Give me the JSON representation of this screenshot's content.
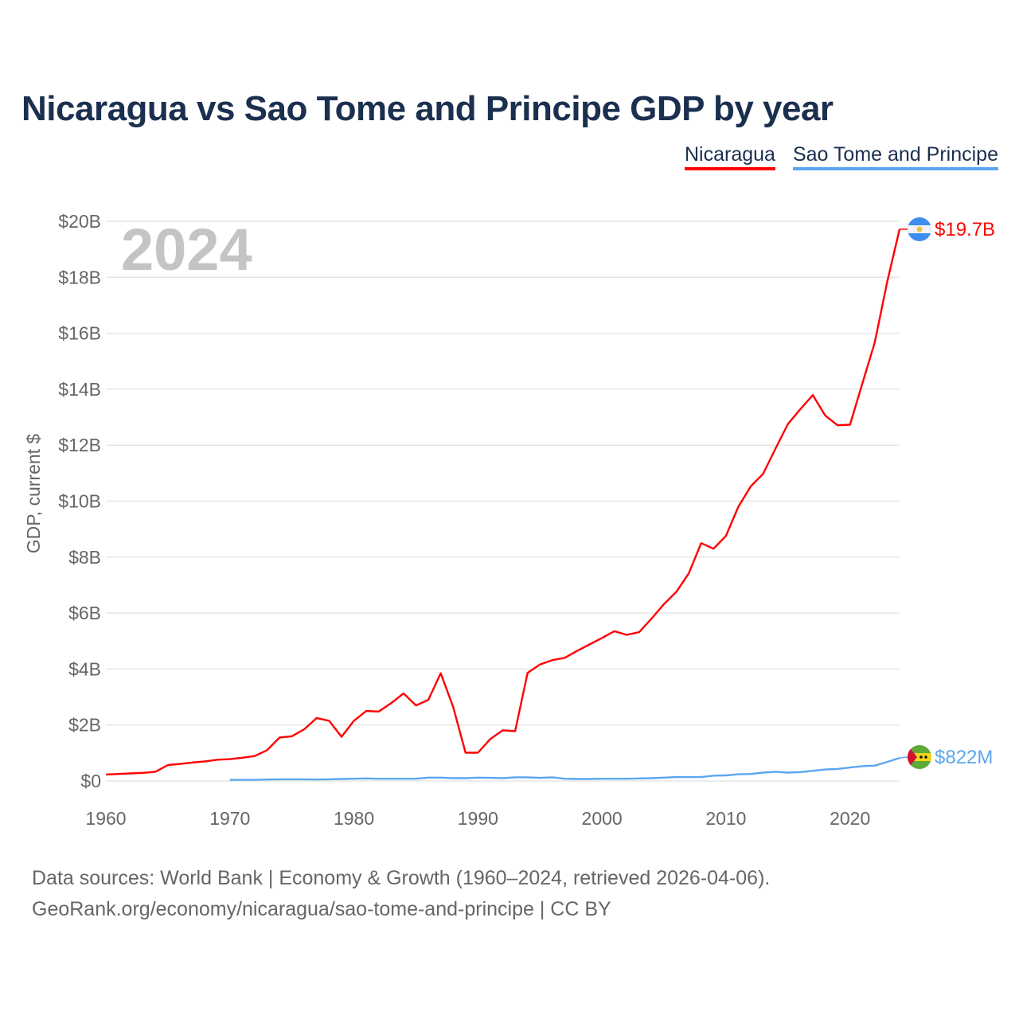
{
  "title": "Nicaragua vs Sao Tome and Principe GDP by year",
  "legend": [
    "Nicaragua",
    "Sao Tome and Principe"
  ],
  "year_label": "2024",
  "source_line1": "Data sources: World Bank | Economy & Growth (1960–2024, retrieved 2026-04-06).",
  "source_line2": "GeoRank.org/economy/nicaragua/sao-tome-and-principe | CC BY",
  "chart_data": {
    "type": "line",
    "title": "Nicaragua vs Sao Tome and Principe GDP by year",
    "xlabel": "",
    "ylabel": "GDP, current $",
    "xlim": [
      1960,
      2024
    ],
    "ylim": [
      0,
      20
    ],
    "y_unit": "billion USD",
    "xticks": [
      "1960",
      "1970",
      "1980",
      "1990",
      "2000",
      "2010",
      "2020"
    ],
    "yticks": [
      "$0",
      "$2B",
      "$4B",
      "$6B",
      "$8B",
      "$10B",
      "$12B",
      "$14B",
      "$16B",
      "$18B",
      "$20B"
    ],
    "grid": true,
    "legend_position": "top-right",
    "series": [
      {
        "name": "Nicaragua",
        "color": "#ff0000",
        "start_year": 1960,
        "end_label": "$19.7B",
        "values": [
          0.23,
          0.25,
          0.27,
          0.29,
          0.33,
          0.57,
          0.61,
          0.66,
          0.7,
          0.76,
          0.78,
          0.83,
          0.89,
          1.1,
          1.55,
          1.6,
          1.85,
          2.25,
          2.15,
          1.58,
          2.15,
          2.5,
          2.48,
          2.78,
          3.13,
          2.7,
          2.9,
          3.85,
          2.65,
          1.01,
          1.01,
          1.5,
          1.81,
          1.78,
          3.86,
          4.16,
          4.32,
          4.4,
          4.65,
          4.88,
          5.11,
          5.35,
          5.22,
          5.32,
          5.8,
          6.32,
          6.76,
          7.42,
          8.5,
          8.3,
          8.76,
          9.8,
          10.53,
          10.98,
          11.88,
          12.76,
          13.29,
          13.79,
          13.06,
          12.71,
          12.73,
          14.21,
          15.67,
          17.83,
          19.72
        ]
      },
      {
        "name": "Sao Tome and Principe",
        "color": "#5aa7f0",
        "start_year": 1970,
        "end_label": "$822M",
        "values": [
          0.04,
          0.04,
          0.04,
          0.05,
          0.06,
          0.06,
          0.06,
          0.05,
          0.06,
          0.07,
          0.08,
          0.09,
          0.08,
          0.08,
          0.08,
          0.08,
          0.12,
          0.12,
          0.1,
          0.1,
          0.12,
          0.11,
          0.1,
          0.13,
          0.13,
          0.11,
          0.13,
          0.08,
          0.07,
          0.07,
          0.08,
          0.08,
          0.08,
          0.09,
          0.1,
          0.12,
          0.14,
          0.14,
          0.14,
          0.19,
          0.2,
          0.24,
          0.25,
          0.3,
          0.33,
          0.3,
          0.32,
          0.36,
          0.41,
          0.43,
          0.48,
          0.53,
          0.55,
          0.68,
          0.822
        ]
      }
    ]
  }
}
